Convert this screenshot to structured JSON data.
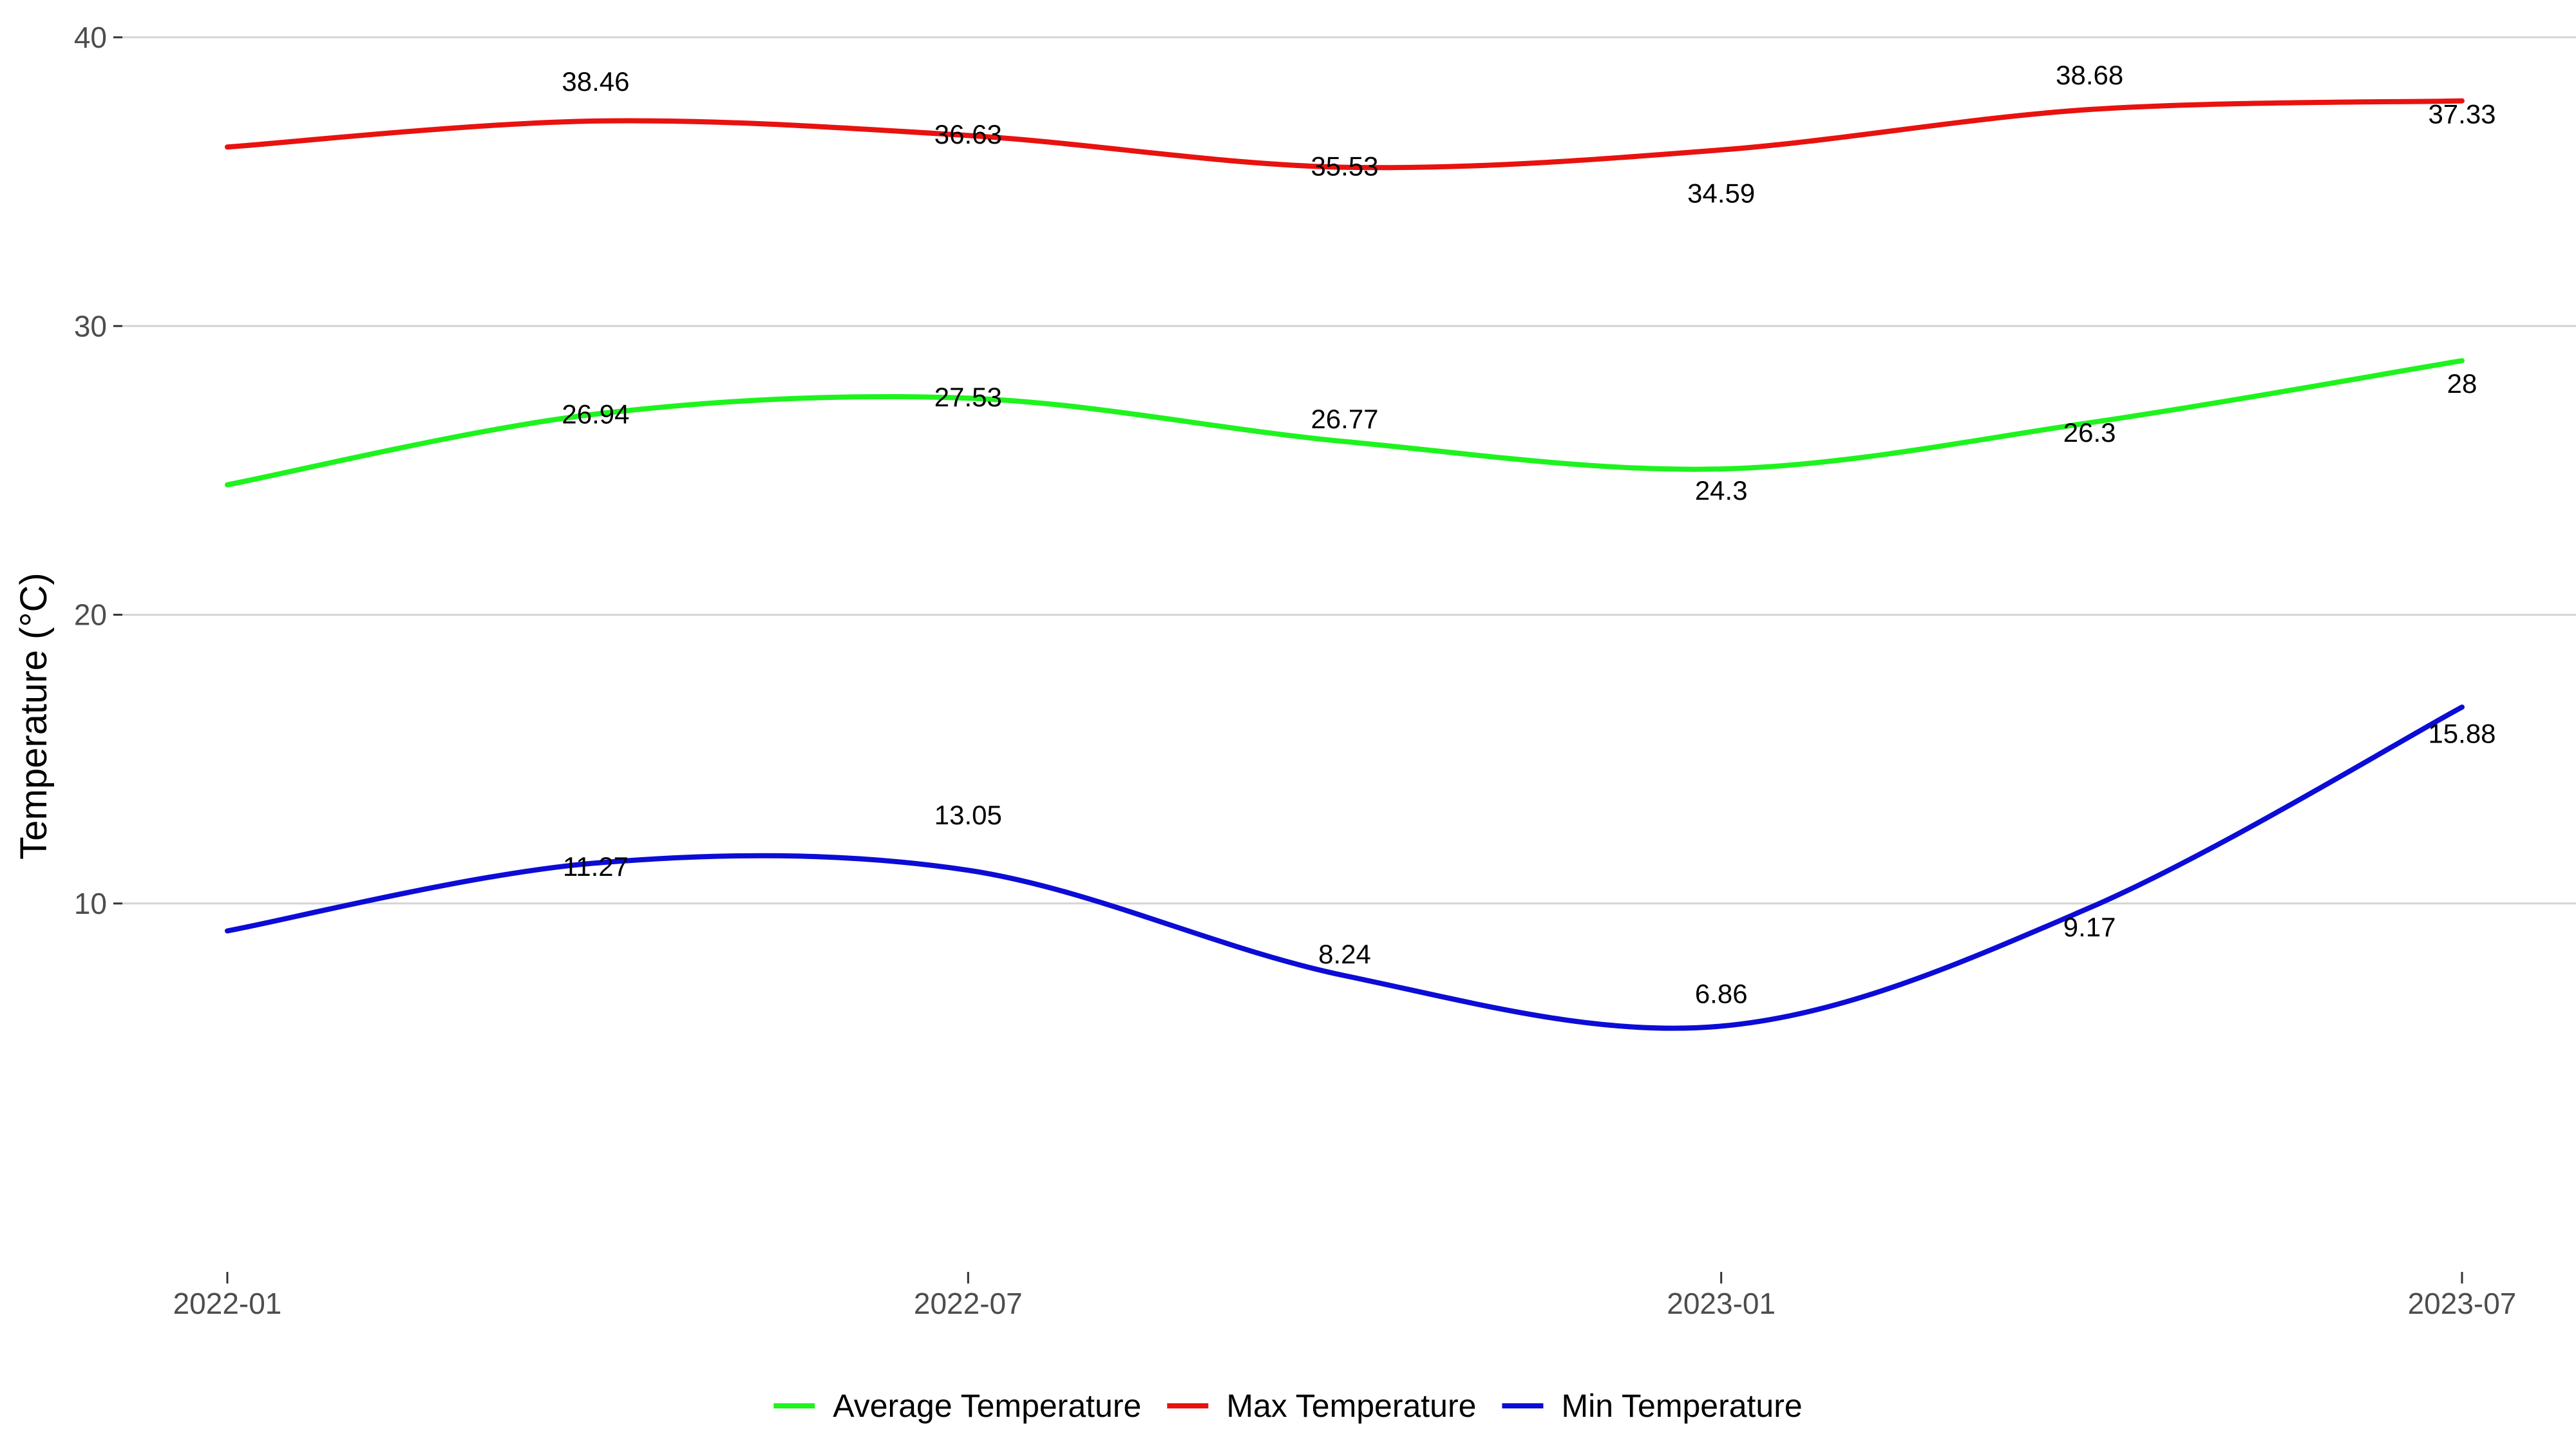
{
  "chart_data": {
    "type": "line",
    "title": "",
    "xlabel": "",
    "ylabel": "Temperature (°C)",
    "x_ticks": [
      "2022-01",
      "2022-07",
      "2023-01",
      "2023-07"
    ],
    "x_tick_dates": [
      "2022-01-01",
      "2022-07-01",
      "2023-01-01",
      "2023-07-01"
    ],
    "y_ticks": [
      10,
      20,
      30,
      40
    ],
    "ylim": [
      4.6,
      40.4
    ],
    "grid": "horizontal-major",
    "legend": "bottom",
    "x_dates": [
      "2022-01-01",
      "2022-04-01",
      "2022-07-01",
      "2022-10-01",
      "2023-01-01",
      "2023-04-01",
      "2023-07-01"
    ],
    "series": [
      {
        "name": "Average Temperature",
        "color": "#1EF31E",
        "labels": [
          null,
          "26.94",
          "27.53",
          "26.77",
          "24.3",
          "26.3",
          "28"
        ],
        "label_values": [
          null,
          26.94,
          27.53,
          26.77,
          24.3,
          26.3,
          28
        ],
        "smooth_values": [
          24.5,
          26.95,
          27.5,
          26.0,
          25.05,
          26.65,
          28.8
        ]
      },
      {
        "name": "Max Temperature",
        "color": "#E8120F",
        "labels": [
          null,
          "38.46",
          "36.63",
          "35.53",
          "34.59",
          "38.68",
          "37.33"
        ],
        "label_values": [
          null,
          38.46,
          36.63,
          35.53,
          34.59,
          38.68,
          37.33
        ],
        "smooth_values": [
          36.2,
          37.1,
          36.6,
          35.5,
          36.1,
          37.5,
          37.8
        ]
      },
      {
        "name": "Min Temperature",
        "color": "#0C0CD6",
        "labels": [
          null,
          "11.27",
          "13.05",
          "8.24",
          "6.86",
          "9.17",
          "15.88"
        ],
        "label_values": [
          null,
          11.27,
          13.05,
          8.24,
          6.86,
          9.17,
          15.88
        ],
        "smooth_values": [
          9.05,
          11.4,
          11.15,
          7.5,
          5.75,
          9.85,
          16.8
        ]
      }
    ]
  }
}
